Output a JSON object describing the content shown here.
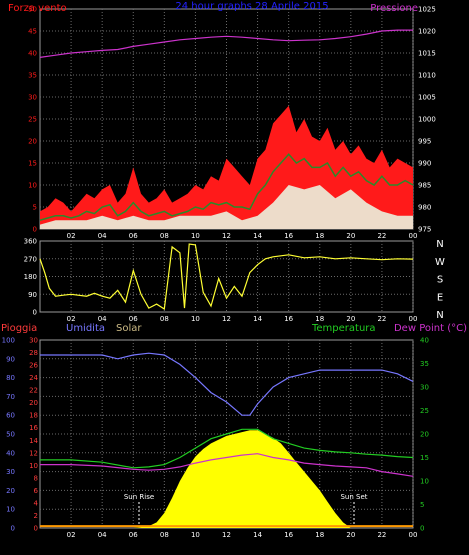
{
  "colors": {
    "background": "#000000",
    "frame": "#9a9a9a",
    "grid": "#6a6a6a",
    "wind": "#ff1a1a",
    "gust": "#2a8a2a",
    "windAvg": "#eaffea",
    "pressure": "#cc33cc",
    "direction": "#ffff33",
    "humidity": "#7777ff",
    "solar": "#ffff00",
    "temperature": "#22cc22",
    "dewpoint": "#cc33cc",
    "rain": "#ff3b3b",
    "orange": "#ff9900"
  },
  "chart_data": [
    {
      "type": "line",
      "title": "24 hour graphs   28 Aprile 2015",
      "left_label": "Forza vento",
      "right_label": "Pressione",
      "left_axis": {
        "min": 0,
        "max": 50,
        "ticks": [
          "0",
          "5",
          "10",
          "15",
          "20",
          "25",
          "30",
          "35",
          "40",
          "45",
          "50"
        ]
      },
      "right_axis": {
        "min": 975,
        "max": 1025,
        "ticks": [
          "975",
          "980",
          "985",
          "990",
          "995",
          "1000",
          "1005",
          "1010",
          "1015",
          "1020",
          "1025"
        ]
      },
      "x_axis": {
        "min": 0,
        "max": 24,
        "ticks": [
          "02",
          "04",
          "06",
          "08",
          "10",
          "12",
          "14",
          "16",
          "18",
          "20",
          "22",
          "00"
        ]
      },
      "series": {
        "pressure": {
          "x": [
            0,
            1,
            2,
            3,
            4,
            5,
            6,
            7,
            8,
            9,
            10,
            11,
            12,
            13,
            14,
            15,
            16,
            17,
            18,
            19,
            20,
            21,
            22,
            23,
            24
          ],
          "y": [
            1014,
            1014.5,
            1015,
            1015.3,
            1015.6,
            1015.8,
            1016.5,
            1017,
            1017.5,
            1018,
            1018.3,
            1018.6,
            1018.8,
            1018.6,
            1018.3,
            1018,
            1017.8,
            1017.9,
            1018,
            1018.3,
            1018.7,
            1019.3,
            1020,
            1020.2,
            1020.2
          ]
        },
        "wind": {
          "x": [
            0,
            0.5,
            1,
            1.5,
            2,
            2.5,
            3,
            3.5,
            4,
            4.5,
            5,
            5.5,
            6,
            6.5,
            7,
            7.5,
            8,
            8.5,
            9,
            9.5,
            10,
            10.5,
            11,
            11.5,
            12,
            12.5,
            13,
            13.5,
            14,
            14.5,
            15,
            15.5,
            16,
            16.5,
            17,
            17.5,
            18,
            18.5,
            19,
            19.5,
            20,
            20.5,
            21,
            21.5,
            22,
            22.5,
            23,
            23.5,
            24
          ],
          "y": [
            4,
            5,
            7,
            6,
            4,
            6,
            8,
            7,
            9,
            10,
            6,
            8,
            14,
            8,
            6,
            7,
            9,
            6,
            7,
            8,
            10,
            9,
            12,
            11,
            16,
            14,
            12,
            10,
            16,
            18,
            24,
            26,
            28,
            22,
            25,
            21,
            20,
            23,
            18,
            20,
            17,
            19,
            16,
            15,
            18,
            14,
            16,
            15,
            14
          ]
        },
        "gust": {
          "x": [
            0,
            0.5,
            1,
            1.5,
            2,
            2.5,
            3,
            3.5,
            4,
            4.5,
            5,
            5.5,
            6,
            6.5,
            7,
            7.5,
            8,
            8.5,
            9,
            9.5,
            10,
            10.5,
            11,
            11.5,
            12,
            12.5,
            13,
            13.5,
            14,
            14.5,
            15,
            15.5,
            16,
            16.5,
            17,
            17.5,
            18,
            18.5,
            19,
            19.5,
            20,
            20.5,
            21,
            21.5,
            22,
            22.5,
            23,
            23.5,
            24
          ],
          "y": [
            2,
            2.5,
            3,
            3,
            2.5,
            3,
            4,
            3.5,
            5,
            5.5,
            3,
            4,
            6,
            4,
            3,
            3.5,
            4,
            3,
            3.5,
            4,
            5,
            4.5,
            6,
            5.5,
            6,
            5,
            5,
            4.5,
            8,
            10,
            13,
            15,
            17,
            15,
            16,
            14,
            14,
            15,
            12,
            14,
            12,
            13,
            11,
            10,
            12,
            10,
            10,
            11,
            10
          ]
        },
        "windAvg": {
          "x": [
            0,
            1,
            2,
            3,
            4,
            5,
            6,
            7,
            8,
            9,
            10,
            11,
            12,
            13,
            14,
            15,
            16,
            17,
            18,
            19,
            20,
            21,
            22,
            23,
            24
          ],
          "y": [
            1,
            2,
            2,
            2,
            3,
            2,
            3,
            2,
            2,
            3,
            3,
            3,
            4,
            2,
            3,
            6,
            10,
            9,
            10,
            7,
            9,
            6,
            4,
            3,
            3
          ]
        }
      }
    },
    {
      "type": "line",
      "right_labels": [
        "N",
        "W",
        "S",
        "E",
        "N"
      ],
      "left_axis": {
        "min": 0,
        "max": 360,
        "ticks": [
          "0",
          "90",
          "180",
          "270",
          "360"
        ]
      },
      "x_axis": {
        "min": 0,
        "max": 24,
        "ticks": [
          "02",
          "04",
          "06",
          "08",
          "10",
          "12",
          "14",
          "16",
          "18",
          "20",
          "22",
          "00"
        ]
      },
      "series": {
        "direction": {
          "x": [
            0,
            0.3,
            0.6,
            1,
            1.5,
            2,
            3,
            3.5,
            4,
            4.5,
            5,
            5.5,
            6,
            6.5,
            7,
            7.5,
            8,
            8.5,
            9,
            9.3,
            9.6,
            10,
            10.5,
            11,
            11.5,
            12,
            12.5,
            13,
            13.5,
            14,
            14.5,
            15,
            16,
            17,
            18,
            19,
            20,
            21,
            22,
            23,
            24
          ],
          "y": [
            270,
            200,
            120,
            80,
            85,
            90,
            80,
            95,
            80,
            70,
            110,
            50,
            210,
            90,
            20,
            40,
            15,
            330,
            300,
            20,
            345,
            340,
            100,
            30,
            170,
            70,
            130,
            80,
            200,
            240,
            270,
            280,
            290,
            275,
            280,
            270,
            275,
            270,
            265,
            270,
            268
          ]
        }
      }
    },
    {
      "type": "line",
      "labels": {
        "rain": "Pioggia",
        "humidity": "Umidita",
        "solar": "Solar",
        "temperature": "Temperatura",
        "dewpoint": "Dew Point (°C)"
      },
      "annotations": [
        "Sun Rise",
        "Sun Set"
      ],
      "left_axis_humidity": {
        "min": 0,
        "max": 100,
        "ticks": [
          "0",
          "10",
          "20",
          "30",
          "40",
          "50",
          "60",
          "70",
          "80",
          "90",
          "100"
        ]
      },
      "left_axis_rain": {
        "min": 0,
        "max": 30,
        "ticks": [
          "0",
          "2",
          "4",
          "6",
          "8",
          "10",
          "12",
          "14",
          "16",
          "18",
          "20",
          "22",
          "24",
          "26",
          "28",
          "30"
        ]
      },
      "right_axis": {
        "min": 0,
        "max": 40,
        "ticks": [
          "0",
          "5",
          "10",
          "15",
          "20",
          "25",
          "30",
          "35",
          "40"
        ]
      },
      "x_axis": {
        "min": 0,
        "max": 24,
        "ticks": [
          "02",
          "04",
          "06",
          "08",
          "10",
          "12",
          "14",
          "16",
          "18",
          "20",
          "22",
          "00"
        ]
      },
      "series": {
        "humidity": {
          "x": [
            0,
            2,
            4,
            5,
            6,
            7,
            8,
            9,
            10,
            11,
            12,
            13,
            13.5,
            14,
            15,
            16,
            17,
            18,
            19,
            20,
            21,
            22,
            23,
            24
          ],
          "y": [
            92,
            92,
            92,
            90,
            92,
            93,
            92,
            87,
            80,
            72,
            67,
            60,
            60,
            66,
            75,
            80,
            82,
            84,
            84,
            84,
            84,
            84,
            82,
            78
          ]
        },
        "temperature": {
          "x": [
            0,
            2,
            4,
            6,
            7,
            8,
            9,
            10,
            11,
            12,
            13,
            14,
            15,
            16,
            17,
            18,
            19,
            20,
            21,
            22,
            23,
            24
          ],
          "y": [
            14.5,
            14.5,
            14,
            12.8,
            13,
            13.5,
            15,
            17,
            19,
            20,
            21,
            21,
            19,
            18,
            17,
            16.5,
            16.2,
            16,
            15.7,
            15.5,
            15.2,
            15
          ]
        },
        "dewpoint": {
          "x": [
            0,
            2,
            4,
            6,
            7,
            8,
            9,
            10,
            11,
            12,
            13,
            14,
            15,
            16,
            17,
            18,
            19,
            20,
            21,
            22,
            23,
            24
          ],
          "y": [
            13.5,
            13.5,
            13.2,
            12.5,
            12.3,
            12.5,
            13,
            13.8,
            14.5,
            15,
            15.5,
            15.8,
            15,
            14.5,
            13.8,
            13.5,
            13.2,
            13,
            12.8,
            12,
            11.5,
            11
          ]
        },
        "solar": {
          "x": [
            6,
            7,
            7.5,
            8,
            8.5,
            9,
            9.5,
            10,
            10.5,
            11,
            11.5,
            12,
            12.5,
            13,
            13.5,
            14,
            14.5,
            15,
            15.5,
            16,
            16.5,
            17,
            18,
            18.5,
            19,
            19.5,
            20
          ],
          "y": [
            0,
            1,
            3,
            8,
            16,
            25,
            32,
            38,
            42,
            45,
            47,
            49,
            50,
            51,
            52,
            52,
            50,
            48,
            45,
            40,
            35,
            30,
            20,
            14,
            8,
            3,
            0
          ]
        },
        "rain": {
          "x": [
            0,
            24
          ],
          "y": [
            0.3,
            0.3
          ]
        }
      }
    }
  ]
}
